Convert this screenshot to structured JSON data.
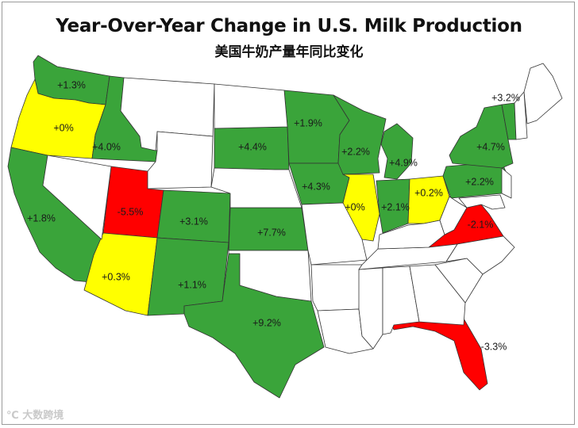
{
  "title": "Year-Over-Year Change in U.S. Milk Production",
  "subtitle": "美国牛奶产量年同比变化",
  "watermark": "℃ 大数跨境",
  "colors": {
    "increase": "#3aa43a",
    "flat": "#ffff00",
    "decrease": "#ff0000",
    "none": "#ffffff",
    "border": "#333333"
  },
  "legend_note": "",
  "states": [
    {
      "id": "WA",
      "change": "+1.3%",
      "cat": "increase"
    },
    {
      "id": "OR",
      "change": "+0%",
      "cat": "flat"
    },
    {
      "id": "CA",
      "change": "+1.8%",
      "cat": "increase"
    },
    {
      "id": "ID",
      "change": "+4.0%",
      "cat": "increase"
    },
    {
      "id": "UT",
      "change": "-5.5%",
      "cat": "decrease"
    },
    {
      "id": "AZ",
      "change": "+0.3%",
      "cat": "flat"
    },
    {
      "id": "CO",
      "change": "+3.1%",
      "cat": "increase"
    },
    {
      "id": "NM",
      "change": "+1.1%",
      "cat": "increase"
    },
    {
      "id": "TX",
      "change": "+9.2%",
      "cat": "increase"
    },
    {
      "id": "KS",
      "change": "+7.7%",
      "cat": "increase"
    },
    {
      "id": "SD",
      "change": "+4.4%",
      "cat": "increase"
    },
    {
      "id": "MN",
      "change": "+1.9%",
      "cat": "increase"
    },
    {
      "id": "IA",
      "change": "+4.3%",
      "cat": "increase"
    },
    {
      "id": "WI",
      "change": "+2.2%",
      "cat": "increase"
    },
    {
      "id": "IL",
      "change": "+0%",
      "cat": "flat"
    },
    {
      "id": "MI",
      "change": "+4.9%",
      "cat": "increase"
    },
    {
      "id": "IN",
      "change": "+2.1%",
      "cat": "increase"
    },
    {
      "id": "OH",
      "change": "+0.2%",
      "cat": "flat"
    },
    {
      "id": "PA",
      "change": "+2.2%",
      "cat": "increase"
    },
    {
      "id": "NY",
      "change": "+4.7%",
      "cat": "increase"
    },
    {
      "id": "VT",
      "change": "+3.2%",
      "cat": "increase"
    },
    {
      "id": "VA",
      "change": "-2.1%",
      "cat": "decrease"
    },
    {
      "id": "FL",
      "change": "-3.3%",
      "cat": "decrease"
    },
    {
      "id": "MT",
      "change": "",
      "cat": "none"
    },
    {
      "id": "WY",
      "change": "",
      "cat": "none"
    },
    {
      "id": "NV",
      "change": "",
      "cat": "none"
    },
    {
      "id": "ND",
      "change": "",
      "cat": "none"
    },
    {
      "id": "NE",
      "change": "",
      "cat": "none"
    },
    {
      "id": "OK",
      "change": "",
      "cat": "none"
    },
    {
      "id": "MO",
      "change": "",
      "cat": "none"
    },
    {
      "id": "AR",
      "change": "",
      "cat": "none"
    },
    {
      "id": "LA",
      "change": "",
      "cat": "none"
    },
    {
      "id": "MS",
      "change": "",
      "cat": "none"
    },
    {
      "id": "AL",
      "change": "",
      "cat": "none"
    },
    {
      "id": "GA",
      "change": "",
      "cat": "none"
    },
    {
      "id": "SC",
      "change": "",
      "cat": "none"
    },
    {
      "id": "NC",
      "change": "",
      "cat": "none"
    },
    {
      "id": "TN",
      "change": "",
      "cat": "none"
    },
    {
      "id": "KY",
      "change": "",
      "cat": "none"
    },
    {
      "id": "WV",
      "change": "",
      "cat": "none"
    },
    {
      "id": "MD",
      "change": "",
      "cat": "none"
    },
    {
      "id": "NJ",
      "change": "",
      "cat": "none"
    },
    {
      "id": "ME",
      "change": "",
      "cat": "none"
    },
    {
      "id": "NH",
      "change": "",
      "cat": "none"
    }
  ]
}
